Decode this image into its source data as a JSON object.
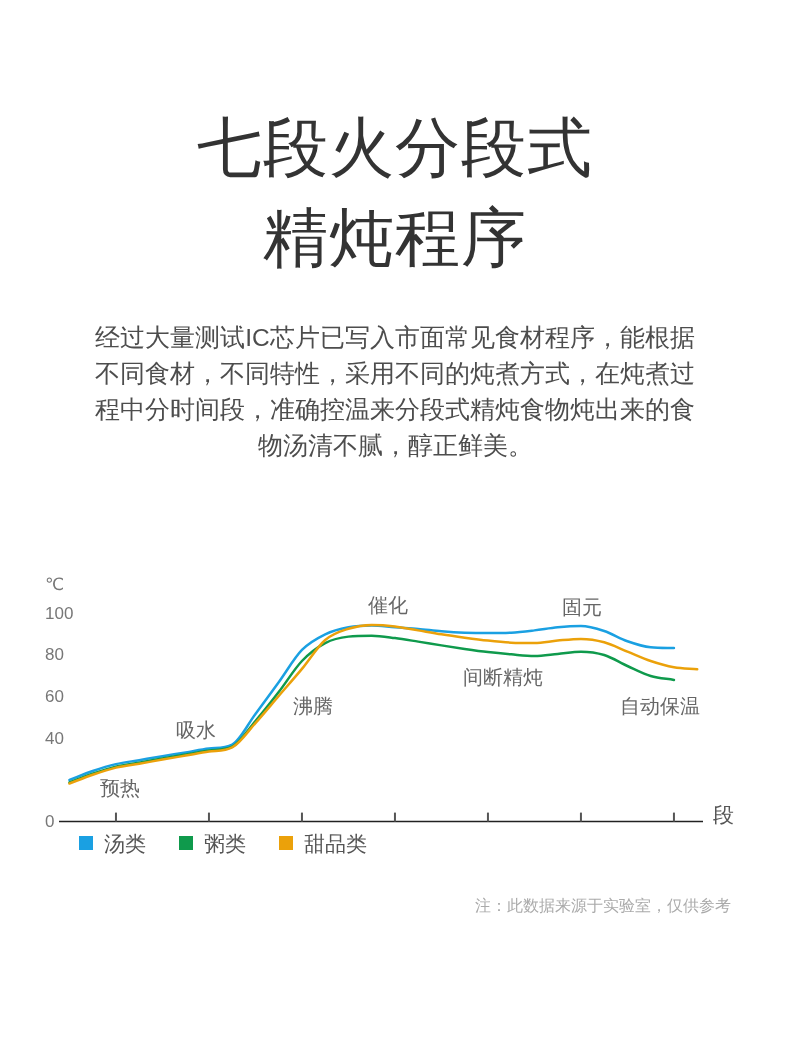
{
  "chart_data": {
    "type": "line",
    "title": "七段火分段式精炖程序",
    "subtitle": "经过大量测试IC芯片已写入市面常见食材程序，能根据不同食材，不同特性，采用不同的炖煮方式，在炖煮过程中分时间段，准确控温来分段式精炖食物炖出来的食物汤清不腻，醇正鲜美。",
    "xlabel": "段",
    "ylabel": "℃",
    "categories": [
      null,
      null,
      null,
      null,
      null,
      null,
      null,
      null,
      null,
      null,
      null,
      null,
      null,
      null,
      null,
      null,
      null,
      null,
      null,
      null,
      null,
      null,
      null,
      null,
      null,
      null,
      null,
      null
    ],
    "ylim": [
      0,
      100
    ],
    "yticks": [
      0,
      40,
      60,
      80,
      100
    ],
    "tick_labels": "y",
    "grid": false,
    "legend": "bottom",
    "marker": "none",
    "line_style": "solid",
    "series": [
      {
        "name": "汤类",
        "color": "#1aa0e2",
        "values": [
          20.0,
          24.3,
          27.6,
          29.5,
          31.4,
          33.2,
          35.1,
          37.0,
          51.7,
          66.9,
          82.4,
          89.9,
          93.3,
          94.2,
          93.3,
          92.5,
          91.4,
          90.7,
          90.5,
          90.7,
          91.8,
          93.3,
          93.9,
          91.5,
          86.6,
          83.7,
          83.3,
          null
        ]
      },
      {
        "name": "粥类",
        "color": "#0f9a4c",
        "values": [
          18.8,
          23.0,
          26.4,
          28.3,
          30.3,
          32.2,
          34.1,
          36.0,
          48.3,
          62.2,
          77.1,
          85.7,
          88.8,
          89.2,
          88.1,
          86.4,
          84.6,
          82.9,
          81.4,
          80.3,
          79.5,
          80.5,
          81.6,
          80.0,
          74.7,
          69.9,
          68.0,
          null
        ]
      },
      {
        "name": "甜品类",
        "color": "#eba10a",
        "values": [
          18.3,
          22.5,
          25.9,
          27.8,
          29.8,
          31.7,
          33.6,
          35.6,
          47.3,
          60.3,
          73.3,
          87.2,
          92.6,
          94.4,
          93.7,
          91.8,
          89.9,
          88.3,
          86.9,
          85.9,
          85.7,
          86.9,
          87.7,
          86.1,
          81.6,
          77.1,
          74.1,
          73.1
        ]
      }
    ],
    "annotations": [
      "预热",
      "吸水",
      "沸腾",
      "催化",
      "间断精炖",
      "固元",
      "自动保温",
      "注：此数据来源于实验室，仅供参考"
    ]
  }
}
